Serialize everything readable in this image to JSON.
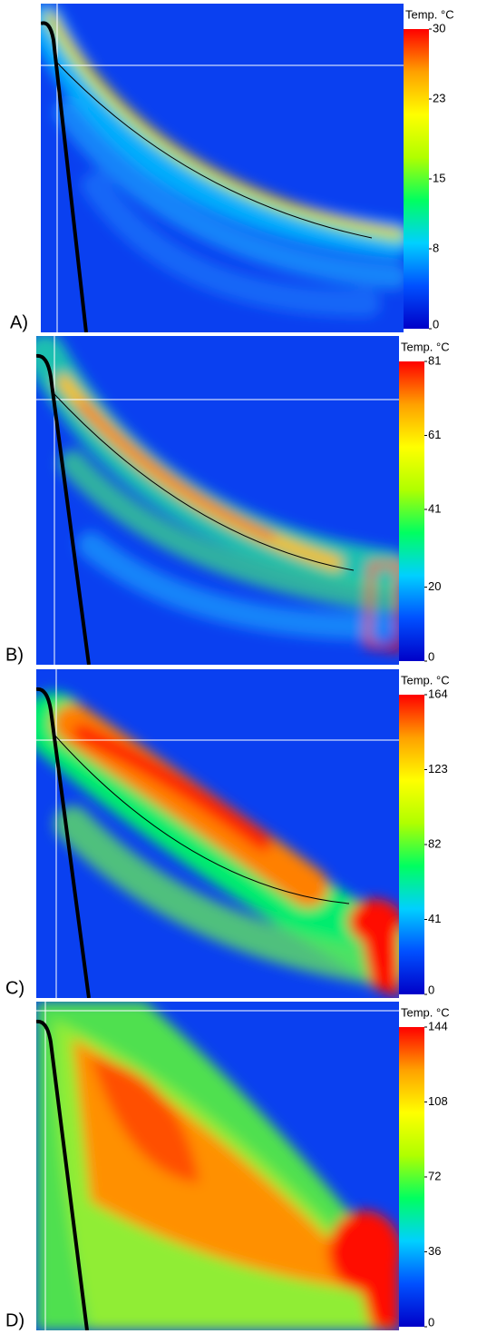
{
  "chart_data": [
    {
      "type": "heatmap",
      "label": "A)",
      "colorbar": {
        "title": "Temp. °C",
        "lim": [
          0,
          30
        ],
        "ticks": [
          0,
          8,
          15,
          23,
          30
        ],
        "colormap": [
          "#0000c8",
          "#0050ff",
          "#00d0ff",
          "#00ff60",
          "#b0ff00",
          "#ffff00",
          "#ffa000",
          "#ff0000"
        ]
      }
    },
    {
      "type": "heatmap",
      "label": "B)",
      "colorbar": {
        "title": "Temp. °C",
        "lim": [
          0,
          81
        ],
        "ticks": [
          0,
          20,
          41,
          61,
          81
        ],
        "colormap": [
          "#0000c8",
          "#0050ff",
          "#00d0ff",
          "#00ff60",
          "#b0ff00",
          "#ffff00",
          "#ffa000",
          "#ff0000"
        ]
      }
    },
    {
      "type": "heatmap",
      "label": "C)",
      "colorbar": {
        "title": "Temp. °C",
        "lim": [
          0,
          164
        ],
        "ticks": [
          0,
          41,
          82,
          123,
          164
        ],
        "colormap": [
          "#0000c8",
          "#0050ff",
          "#00d0ff",
          "#00ff60",
          "#b0ff00",
          "#ffff00",
          "#ffa000",
          "#ff0000"
        ]
      }
    },
    {
      "type": "heatmap",
      "label": "D)",
      "colorbar": {
        "title": "Temp. °C",
        "lim": [
          0,
          144
        ],
        "ticks": [
          0,
          36,
          72,
          108,
          144
        ],
        "colormap": [
          "#0000c8",
          "#0050ff",
          "#00d0ff",
          "#00ff60",
          "#b0ff00",
          "#ffff00",
          "#ffa000",
          "#ff0000"
        ]
      }
    }
  ]
}
